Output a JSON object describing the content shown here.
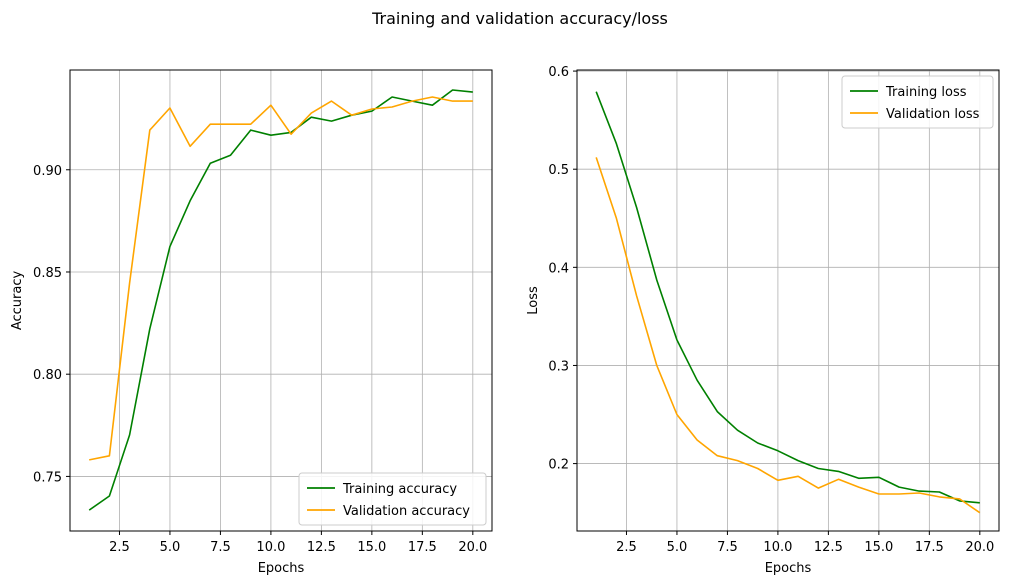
{
  "figure": {
    "suptitle": "Training and validation accuracy/loss"
  },
  "colors": {
    "training": "#008000",
    "validation": "#FFA500",
    "grid": "#b0b0b0"
  },
  "chart_data": [
    {
      "type": "line",
      "xlabel": "Epochs",
      "ylabel": "Accuracy",
      "x": [
        1,
        2,
        3,
        4,
        5,
        6,
        7,
        8,
        9,
        10,
        11,
        12,
        13,
        14,
        15,
        16,
        17,
        18,
        19,
        20
      ],
      "xlim": [
        0.05,
        20.95
      ],
      "ylim": [
        0.7233,
        0.9488
      ],
      "xticks": [
        2.5,
        5.0,
        7.5,
        10.0,
        12.5,
        15.0,
        17.5,
        20.0
      ],
      "xtick_labels": [
        "2.5",
        "5.0",
        "7.5",
        "10.0",
        "12.5",
        "15.0",
        "17.5",
        "20.0"
      ],
      "yticks": [
        0.75,
        0.8,
        0.85,
        0.9
      ],
      "ytick_labels": [
        "0.75",
        "0.80",
        "0.85",
        "0.90"
      ],
      "grid": true,
      "legend_position": "lower right",
      "series": [
        {
          "name": "Training accuracy",
          "color": "#008000",
          "values": [
            0.7335,
            0.7404,
            0.7703,
            0.8222,
            0.8624,
            0.8848,
            0.9032,
            0.9071,
            0.9194,
            0.9169,
            0.9183,
            0.9257,
            0.9238,
            0.9267,
            0.9287,
            0.9356,
            0.9336,
            0.9316,
            0.939,
            0.938
          ]
        },
        {
          "name": "Validation accuracy",
          "color": "#FFA500",
          "values": [
            0.7581,
            0.7601,
            0.8446,
            0.9194,
            0.9302,
            0.9115,
            0.9223,
            0.9223,
            0.9223,
            0.9316,
            0.9174,
            0.9277,
            0.9336,
            0.9267,
            0.9297,
            0.9307,
            0.9336,
            0.9356,
            0.9336,
            0.9336
          ]
        }
      ]
    },
    {
      "type": "line",
      "xlabel": "Epochs",
      "ylabel": "Loss",
      "x": [
        1,
        2,
        3,
        4,
        5,
        6,
        7,
        8,
        9,
        10,
        11,
        12,
        13,
        14,
        15,
        16,
        17,
        18,
        19,
        20
      ],
      "xlim": [
        0.05,
        20.95
      ],
      "ylim": [
        0.1313,
        0.6011
      ],
      "xticks": [
        2.5,
        5.0,
        7.5,
        10.0,
        12.5,
        15.0,
        17.5,
        20.0
      ],
      "xtick_labels": [
        "2.5",
        "5.0",
        "7.5",
        "10.0",
        "12.5",
        "15.0",
        "17.5",
        "20.0"
      ],
      "yticks": [
        0.2,
        0.3,
        0.4,
        0.5,
        0.6
      ],
      "ytick_labels": [
        "0.2",
        "0.3",
        "0.4",
        "0.5",
        "0.6"
      ],
      "grid": true,
      "legend_position": "upper right",
      "series": [
        {
          "name": "Training loss",
          "color": "#008000",
          "values": [
            0.579,
            0.526,
            0.461,
            0.387,
            0.326,
            0.285,
            0.253,
            0.234,
            0.221,
            0.213,
            0.203,
            0.195,
            0.192,
            0.185,
            0.186,
            0.176,
            0.172,
            0.171,
            0.162,
            0.16
          ]
        },
        {
          "name": "Validation loss",
          "color": "#FFA500",
          "values": [
            0.512,
            0.45,
            0.371,
            0.3,
            0.25,
            0.224,
            0.208,
            0.203,
            0.195,
            0.183,
            0.187,
            0.175,
            0.184,
            0.176,
            0.169,
            0.169,
            0.17,
            0.166,
            0.164,
            0.15
          ]
        }
      ]
    }
  ]
}
